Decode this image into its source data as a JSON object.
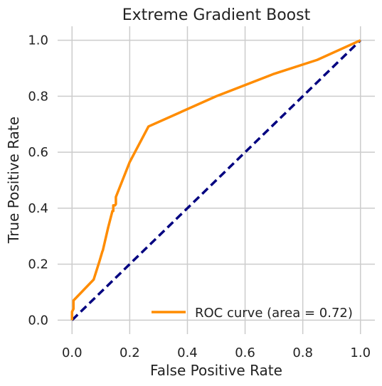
{
  "chart_data": {
    "type": "line",
    "title": "Extreme Gradient Boost",
    "xlabel": "False Positive Rate",
    "ylabel": "True Positive Rate",
    "xlim": [
      -0.05,
      1.05
    ],
    "ylim": [
      -0.05,
      1.05
    ],
    "xticks": [
      0.0,
      0.2,
      0.4,
      0.6,
      0.8,
      1.0
    ],
    "yticks": [
      0.0,
      0.2,
      0.4,
      0.6,
      0.8,
      1.0
    ],
    "xtick_labels": [
      "0.0",
      "0.2",
      "0.4",
      "0.6",
      "0.8",
      "1.0"
    ],
    "ytick_labels": [
      "0.0",
      "0.2",
      "0.4",
      "0.6",
      "0.8",
      "1.0"
    ],
    "grid": true,
    "legend_position": "lower-right",
    "series": [
      {
        "name": "ROC curve (area = 0.72)",
        "color": "#ff8c00",
        "style": "solid",
        "x": [
          0.0,
          0.0,
          0.005,
          0.005,
          0.075,
          0.095,
          0.105,
          0.107,
          0.125,
          0.14,
          0.143,
          0.143,
          0.149,
          0.152,
          0.152,
          0.2,
          0.265,
          0.5,
          0.7,
          0.85,
          1.0
        ],
        "y": [
          0.0,
          0.03,
          0.04,
          0.07,
          0.145,
          0.21,
          0.245,
          0.25,
          0.33,
          0.39,
          0.39,
          0.41,
          0.41,
          0.415,
          0.44,
          0.565,
          0.692,
          0.8,
          0.88,
          0.93,
          1.0
        ]
      },
      {
        "name": "",
        "color": "#000080",
        "style": "dashed",
        "x": [
          0.0,
          1.0
        ],
        "y": [
          0.0,
          1.0
        ]
      }
    ]
  }
}
